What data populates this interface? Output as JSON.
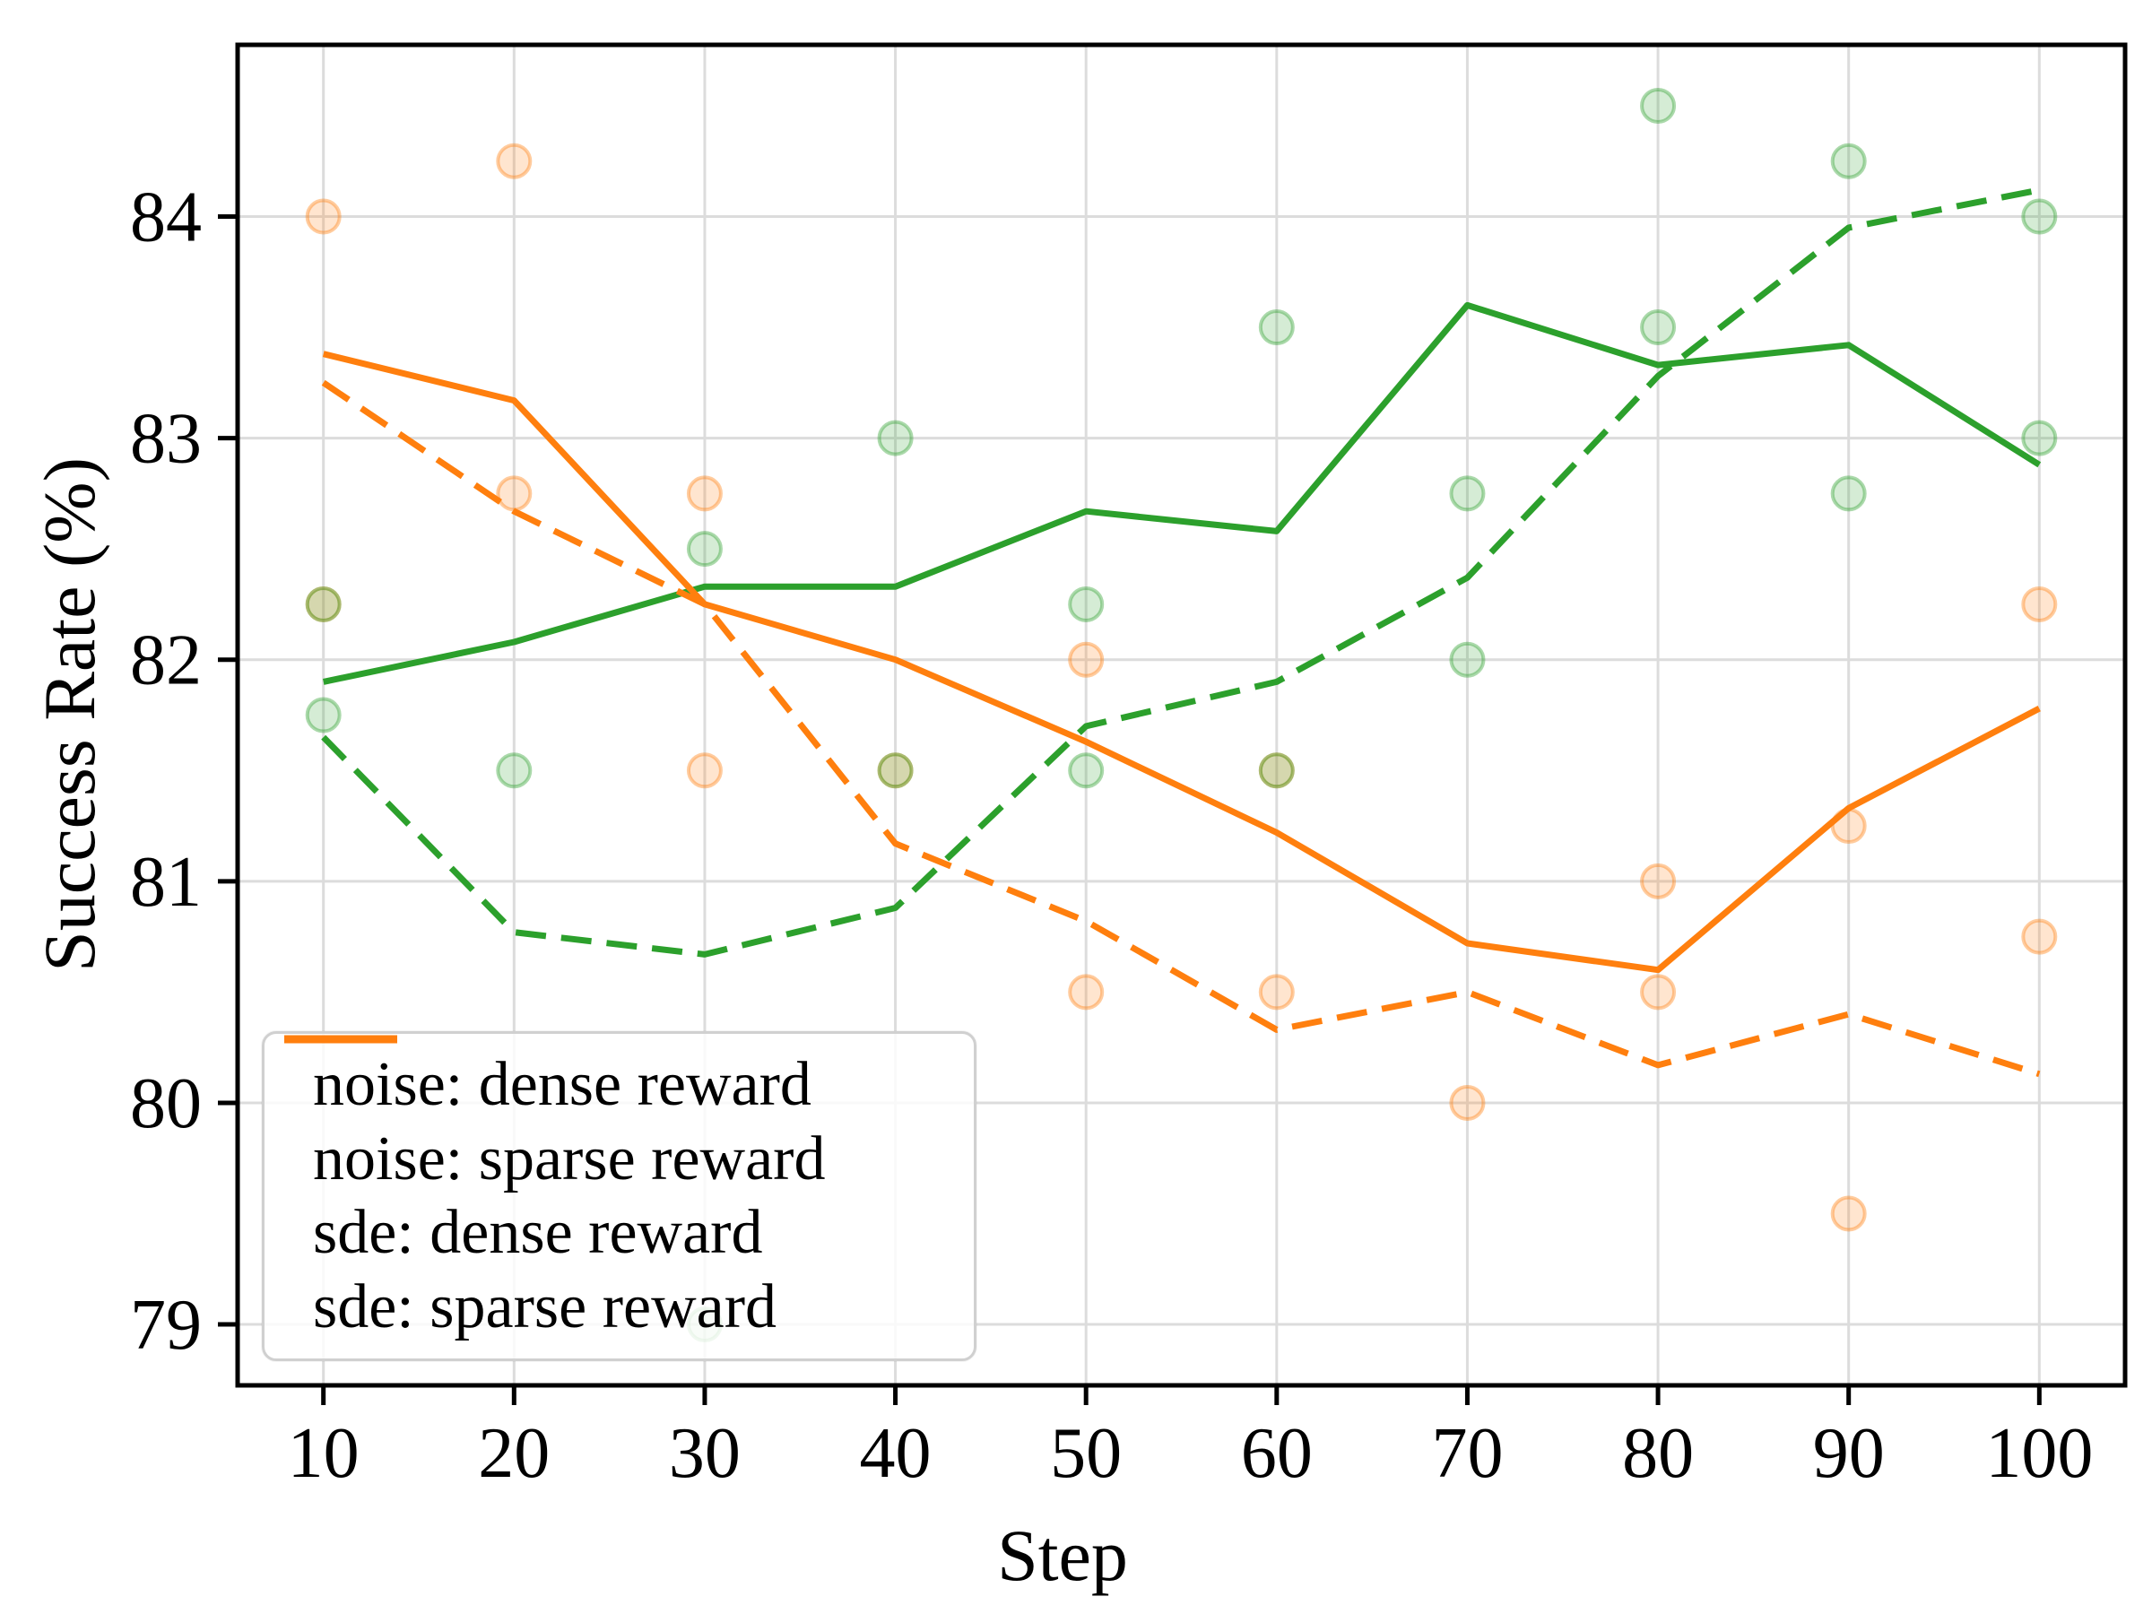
{
  "chart_data": {
    "type": "line",
    "title": "",
    "xlabel": "Step",
    "ylabel": "Success Rate (%)",
    "x": [
      10,
      20,
      30,
      40,
      50,
      60,
      70,
      80,
      90,
      100
    ],
    "series": [
      {
        "name": "noise: dense reward",
        "style": "solid",
        "color": "#2ca02c",
        "values": [
          81.9,
          82.08,
          82.33,
          82.33,
          82.67,
          82.58,
          83.6,
          83.33,
          83.42,
          82.88
        ]
      },
      {
        "name": "noise: sparse reward",
        "style": "solid",
        "color": "#ff7f0e",
        "values": [
          83.38,
          83.17,
          82.25,
          82.0,
          81.63,
          81.22,
          80.72,
          80.6,
          81.33,
          81.78
        ]
      },
      {
        "name": "sde: dense reward",
        "style": "dashed",
        "color": "#2ca02c",
        "values": [
          81.65,
          80.77,
          80.67,
          80.88,
          81.7,
          81.9,
          82.37,
          83.28,
          83.95,
          84.12
        ]
      },
      {
        "name": "sde: sparse reward",
        "style": "dashed",
        "color": "#ff7f0e",
        "values": [
          83.25,
          82.67,
          82.25,
          81.17,
          80.82,
          80.33,
          80.5,
          80.17,
          80.4,
          80.13
        ]
      }
    ],
    "scatter": [
      {
        "color": "#ff7f0e",
        "points": [
          [
            10,
            84.0
          ],
          [
            10,
            82.25
          ],
          [
            20,
            84.25
          ],
          [
            20,
            82.75
          ],
          [
            30,
            82.75
          ],
          [
            30,
            81.5
          ],
          [
            40,
            81.5
          ],
          [
            50,
            82.0
          ],
          [
            50,
            80.5
          ],
          [
            60,
            81.5
          ],
          [
            60,
            80.5
          ],
          [
            70,
            80.0
          ],
          [
            80,
            81.0
          ],
          [
            80,
            80.5
          ],
          [
            90,
            81.25
          ],
          [
            90,
            79.5
          ],
          [
            100,
            82.25
          ],
          [
            100,
            80.75
          ]
        ]
      },
      {
        "color": "#2ca02c",
        "points": [
          [
            10,
            82.25
          ],
          [
            10,
            81.75
          ],
          [
            20,
            81.5
          ],
          [
            30,
            82.5
          ],
          [
            30,
            79.0
          ],
          [
            40,
            83.0
          ],
          [
            40,
            81.5
          ],
          [
            50,
            82.25
          ],
          [
            50,
            81.5
          ],
          [
            60,
            83.5
          ],
          [
            60,
            81.5
          ],
          [
            70,
            82.75
          ],
          [
            70,
            82.0
          ],
          [
            80,
            84.5
          ],
          [
            80,
            83.5
          ],
          [
            90,
            84.25
          ],
          [
            90,
            82.75
          ],
          [
            100,
            84.0
          ],
          [
            100,
            83.0
          ]
        ]
      }
    ],
    "xticks": [
      10,
      20,
      30,
      40,
      50,
      60,
      70,
      80,
      90,
      100
    ],
    "yticks": [
      79,
      80,
      81,
      82,
      83,
      84
    ],
    "xlim": [
      5.5,
      104.5
    ],
    "ylim": [
      78.725,
      84.775
    ],
    "grid": true,
    "legend_position": "lower left",
    "legend_entries": [
      "noise: dense reward",
      "noise: sparse reward",
      "sde: dense reward",
      "sde: sparse reward"
    ],
    "colors": {
      "grid": "#dcdcdc",
      "spine": "#000000",
      "tick_label": "#000000",
      "legend_border": "#d0d0d0",
      "background": "#ffffff"
    },
    "scatter_alpha_fill": 0.2,
    "scatter_alpha_edge": 0.4
  }
}
